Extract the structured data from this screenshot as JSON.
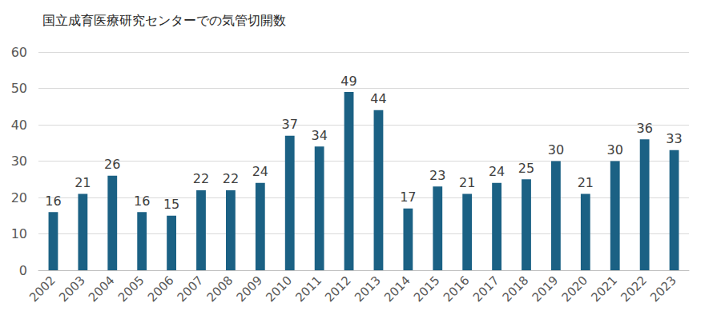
{
  "chart_data": {
    "type": "bar",
    "title": "国立成育医療研究センターでの気管切開数",
    "categories": [
      "2002",
      "2003",
      "2004",
      "2005",
      "2006",
      "2007",
      "2008",
      "2009",
      "2010",
      "2011",
      "2012",
      "2013",
      "2014",
      "2015",
      "2016",
      "2017",
      "2018",
      "2019",
      "2020",
      "2021",
      "2022",
      "2023"
    ],
    "values": [
      16,
      21,
      26,
      16,
      15,
      22,
      22,
      24,
      37,
      34,
      49,
      44,
      17,
      23,
      21,
      24,
      25,
      30,
      21,
      30,
      36,
      33
    ],
    "color": "#1b6184",
    "ylim": [
      0,
      60
    ],
    "yticks": [
      0,
      10,
      20,
      30,
      40,
      50,
      60
    ],
    "grid": true,
    "data_labels": true
  }
}
